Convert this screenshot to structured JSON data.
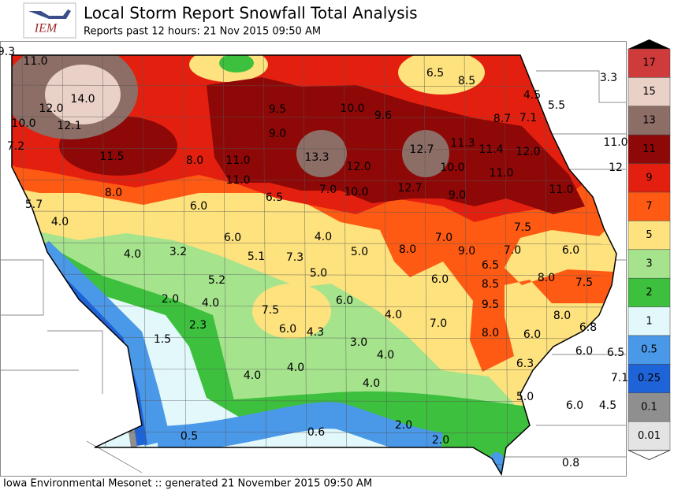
{
  "header": {
    "logo": "IEM",
    "title": "Local Storm Report Snowfall Total Analysis",
    "subtitle": "Reports past 12 hours: 21 Nov 2015 09:50 AM"
  },
  "legend": [
    {
      "label": 17,
      "color": "#cf3b3b"
    },
    {
      "label": 15,
      "color": "#ead1c8"
    },
    {
      "label": 13,
      "color": "#8c6e66"
    },
    {
      "label": 11,
      "color": "#8e0808"
    },
    {
      "label": 9,
      "color": "#e3200f"
    },
    {
      "label": 7,
      "color": "#ff5a14"
    },
    {
      "label": 5,
      "color": "#fde27e"
    },
    {
      "label": 3,
      "color": "#a6e38d"
    },
    {
      "label": 2,
      "color": "#3dc03d"
    },
    {
      "label": 1,
      "color": "#e2f8fa"
    },
    {
      "label": 0.5,
      "color": "#4a98e8"
    },
    {
      "label": 0.25,
      "color": "#1f63d8"
    },
    {
      "label": 0.1,
      "color": "#8f8f8f"
    },
    {
      "label": 0.01,
      "color": "#e4e4e4"
    }
  ],
  "reports": [
    "9.3",
    "11.0",
    "14.0",
    "12.0",
    "10.0",
    "12.1",
    "7.2",
    "11.5",
    "8.0",
    "11.0",
    "9.5",
    "9.0",
    "10.0",
    "9.6",
    "6.5",
    "8.5",
    "4.5",
    "5.5",
    "3.3",
    "8.7",
    "7.1",
    "13.3",
    "12.0",
    "12.7",
    "11.3",
    "11.4",
    "12.0",
    "11.0",
    "12",
    "10.0",
    "11.0",
    "8.0",
    "11.0",
    "6.5",
    "7.0",
    "10.0",
    "12.7",
    "9.0",
    "11.0",
    "5.7",
    "4.0",
    "6.0",
    "6.0",
    "4.0",
    "7.5",
    "7.0",
    "8.0",
    "9.0",
    "7.0",
    "6.0",
    "4.0",
    "3.2",
    "5.1",
    "7.3",
    "5.0",
    "6.5",
    "5.0",
    "6.0",
    "8.5",
    "8.0",
    "7.5",
    "5.2",
    "2.0",
    "4.0",
    "7.5",
    "6.0",
    "9.5",
    "4.0",
    "8.0",
    "7.0",
    "6.8",
    "2.3",
    "6.0",
    "4.3",
    "8.0",
    "6.0",
    "6.0",
    "6.5",
    "1.5",
    "3.0",
    "4.0",
    "7.1",
    "6.3",
    "4.0",
    "4.0",
    "4.0",
    "5.0",
    "6.0",
    "4.5",
    "2.0",
    "0.5",
    "0.6",
    "2.0",
    "0.8"
  ],
  "footer": "Iowa Environmental Mesonet :: generated 21 November 2015 09:50 AM"
}
